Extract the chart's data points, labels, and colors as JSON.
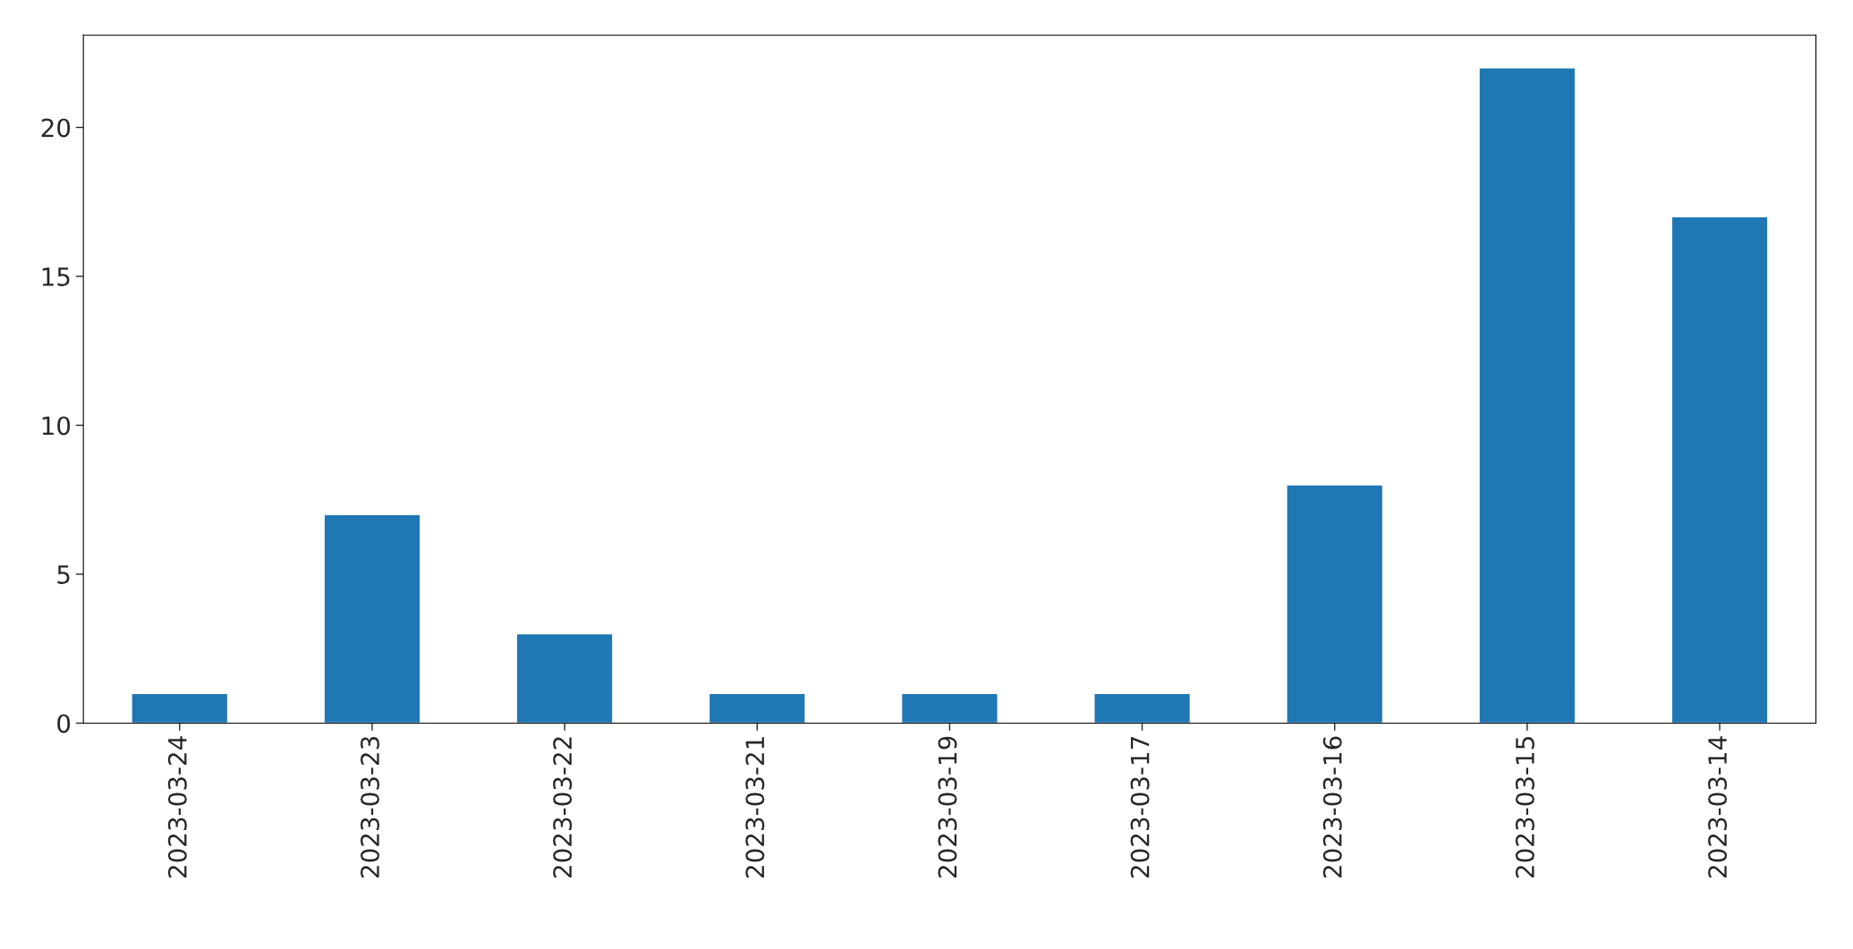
{
  "chart_data": {
    "type": "bar",
    "categories": [
      "2023-03-24",
      "2023-03-23",
      "2023-03-22",
      "2023-03-21",
      "2023-03-19",
      "2023-03-17",
      "2023-03-16",
      "2023-03-15",
      "2023-03-14"
    ],
    "values": [
      1,
      7,
      3,
      1,
      1,
      1,
      8,
      22,
      17
    ],
    "color": "#1f77b4",
    "ylim": [
      0,
      23.1
    ],
    "yticks": [
      0,
      5,
      10,
      15,
      20
    ],
    "grid": false,
    "legend": false
  }
}
